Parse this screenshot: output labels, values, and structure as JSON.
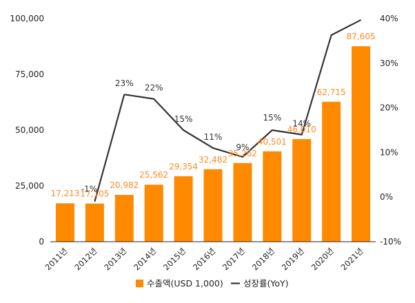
{
  "chart_data": {
    "type": "bar",
    "title": "",
    "categories": [
      "2011년",
      "2012년",
      "2013년",
      "2014년",
      "2015년",
      "2016년",
      "2017년",
      "2018년",
      "2019년",
      "2020년",
      "2021년"
    ],
    "series": [
      {
        "name": "수출액(USD 1,000)",
        "type": "bar",
        "axis": "left",
        "color": "#ff8a00",
        "values": [
          17213,
          17105,
          20982,
          25562,
          29354,
          32482,
          35262,
          40501,
          46010,
          62715,
          87605
        ],
        "labels": [
          "17,213",
          "17,105",
          "20,982",
          "25,562",
          "29,354",
          "32,482",
          "35,262",
          "40,501",
          "46,010",
          "62,715",
          "87,605"
        ]
      },
      {
        "name": "성장률(YoY)",
        "type": "line",
        "axis": "right",
        "color": "#333333",
        "values": [
          null,
          -1,
          23,
          22,
          15,
          11,
          9,
          15,
          14,
          36.3,
          39.7
        ],
        "labels": [
          "",
          "-1%",
          "23%",
          "22%",
          "15%",
          "11%",
          "9%",
          "15%",
          "14%",
          "",
          ""
        ]
      }
    ],
    "y_left": {
      "range": [
        0,
        100000
      ],
      "ticks": [
        "0",
        "25,000",
        "50,000",
        "75,000",
        "100,000"
      ]
    },
    "y_right": {
      "range": [
        -10,
        40
      ],
      "ticks": [
        "-10%",
        "0%",
        "10%",
        "20%",
        "30%",
        "40%"
      ]
    },
    "grid": false,
    "legend_position": "bottom"
  }
}
